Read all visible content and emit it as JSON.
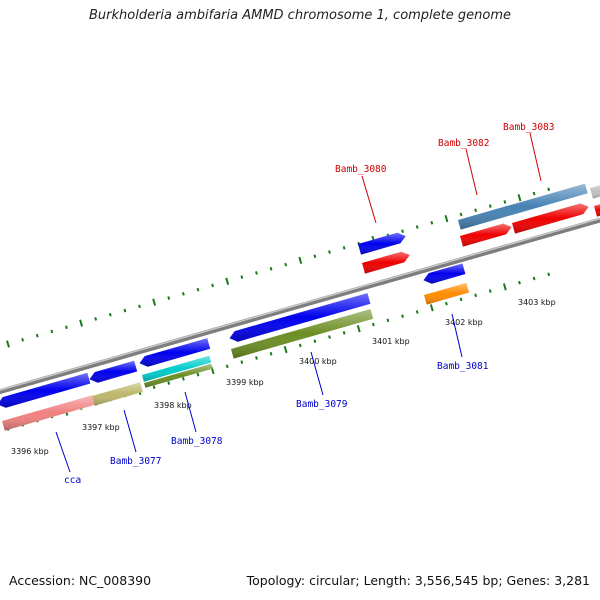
{
  "title": "Burkholderia ambifaria AMMD chromosome 1, complete genome",
  "footer": {
    "accession": "Accession: NC_008390",
    "summary": "Topology: circular; Length: 3,556,545 bp; Genes: 3,281"
  },
  "scale": {
    "unit": "kbp",
    "major_ticks": [
      "3396 kbp",
      "3397 kbp",
      "3398 kbp",
      "3399 kbp",
      "3400 kbp",
      "3401 kbp",
      "3402 kbp",
      "3403 kbp"
    ]
  },
  "gene_labels": [
    {
      "name": "cca",
      "color": "#0000cc"
    },
    {
      "name": "Bamb_3077",
      "color": "#0000cc"
    },
    {
      "name": "Bamb_3078",
      "color": "#0000cc"
    },
    {
      "name": "Bamb_3079",
      "color": "#0000cc"
    },
    {
      "name": "Bamb_3080",
      "color": "#cc0000"
    },
    {
      "name": "Bamb_3081",
      "color": "#0000cc"
    },
    {
      "name": "Bamb_3082",
      "color": "#cc0000"
    },
    {
      "name": "Bamb_3083",
      "color": "#cc0000"
    }
  ],
  "colors": {
    "backbone": "#888888",
    "tick": "#1a7a1a",
    "cds_blue": "#0000ee",
    "cds_red": "#ee0000",
    "pink": "#f08080",
    "khaki": "#bdb76b",
    "olive": "#6b8e23",
    "cyan": "#00cccc",
    "orange": "#ff8c00",
    "steelblue": "#4682b4",
    "grey": "#c0c0c0"
  }
}
